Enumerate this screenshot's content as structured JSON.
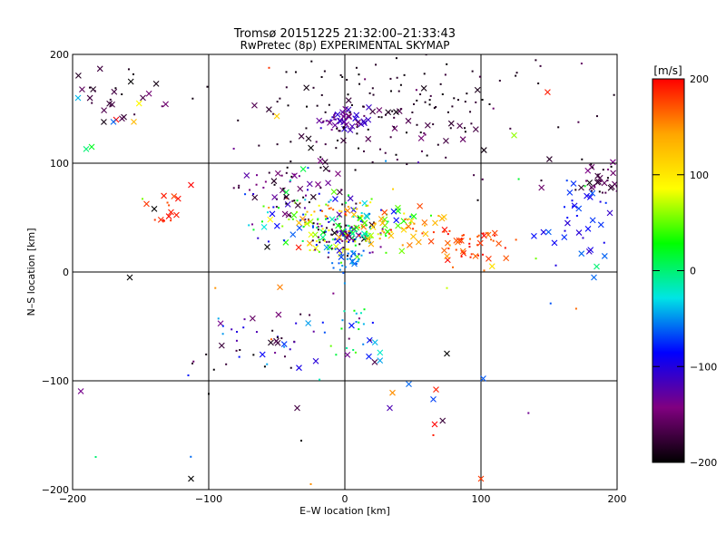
{
  "chart_data": {
    "type": "scatter",
    "title": "Tromsø 20151225 21:32:00–21:33:43",
    "subtitle": "RwPretec (8p) EXPERIMENTAL SKYMAP",
    "xlabel": "E–W location [km]",
    "ylabel": "N–S location [km]",
    "xlim": [
      -200,
      200
    ],
    "ylim": [
      -200,
      200
    ],
    "xticks": [
      -200,
      -100,
      0,
      100,
      200
    ],
    "yticks": [
      -200,
      -100,
      0,
      100,
      200
    ],
    "xtick_labels": [
      "−200",
      "−100",
      "0",
      "100",
      "200"
    ],
    "ytick_labels": [
      "−200",
      "−100",
      "0",
      "100",
      "200"
    ],
    "grid": true,
    "colorbar": {
      "label": "[m/s]",
      "range": [
        -200,
        200
      ],
      "ticks": [
        200,
        100,
        0,
        -100,
        -200
      ],
      "tick_labels": [
        "200",
        "100",
        "0",
        "−100",
        "−200"
      ],
      "colors": [
        "#ff0000",
        "#ffa500",
        "#ffff00",
        "#00ff00",
        "#00e5e5",
        "#0000ff",
        "#800080",
        "#000000"
      ]
    },
    "marker_types": [
      "dot",
      "cross"
    ],
    "clusters": [
      {
        "cx": 0,
        "cy": 35,
        "sx": 14,
        "sy": 10,
        "n": 140,
        "vmin": -200,
        "vmax": 100,
        "cross_ratio": 0.3
      },
      {
        "cx": -25,
        "cy": 50,
        "sx": 22,
        "sy": 12,
        "n": 100,
        "vmin": -200,
        "vmax": 200,
        "cross_ratio": 0.3
      },
      {
        "cx": 25,
        "cy": 45,
        "sx": 20,
        "sy": 12,
        "n": 60,
        "vmin": 0,
        "vmax": 180,
        "cross_ratio": 0.3
      },
      {
        "cx": 0,
        "cy": 140,
        "sx": 8,
        "sy": 5,
        "n": 40,
        "vmin": -140,
        "vmax": -100,
        "cross_ratio": 0.6
      },
      {
        "cx": 20,
        "cy": 130,
        "sx": 40,
        "sy": 20,
        "n": 80,
        "vmin": -200,
        "vmax": -150,
        "cross_ratio": 0.3
      },
      {
        "cx": 20,
        "cy": 160,
        "sx": 60,
        "sy": 25,
        "n": 45,
        "vmin": -200,
        "vmax": -180,
        "cross_ratio": 0.15
      },
      {
        "cx": -40,
        "cy": 80,
        "sx": 18,
        "sy": 12,
        "n": 50,
        "vmin": -200,
        "vmax": -120,
        "cross_ratio": 0.3
      },
      {
        "cx": 0,
        "cy": 10,
        "sx": 6,
        "sy": 8,
        "n": 30,
        "vmin": -70,
        "vmax": -40,
        "cross_ratio": 0.3
      },
      {
        "cx": 95,
        "cy": 25,
        "sx": 15,
        "sy": 10,
        "n": 45,
        "vmin": 160,
        "vmax": 200,
        "cross_ratio": 0.3
      },
      {
        "cx": 60,
        "cy": 35,
        "sx": 12,
        "sy": 8,
        "n": 25,
        "vmin": 120,
        "vmax": 200,
        "cross_ratio": 0.3
      },
      {
        "cx": 187,
        "cy": 85,
        "sx": 10,
        "sy": 8,
        "n": 40,
        "vmin": -200,
        "vmax": -140,
        "cross_ratio": 0.6
      },
      {
        "cx": 175,
        "cy": 45,
        "sx": 15,
        "sy": 20,
        "n": 35,
        "vmin": -110,
        "vmax": -60,
        "cross_ratio": 0.6
      },
      {
        "cx": -160,
        "cy": 160,
        "sx": 22,
        "sy": 15,
        "n": 30,
        "vmin": -200,
        "vmax": -150,
        "cross_ratio": 0.6
      },
      {
        "cx": -130,
        "cy": 58,
        "sx": 8,
        "sy": 8,
        "n": 14,
        "vmin": 170,
        "vmax": 200,
        "cross_ratio": 0.7
      },
      {
        "cx": -60,
        "cy": -65,
        "sx": 25,
        "sy": 15,
        "n": 45,
        "vmin": -200,
        "vmax": -40,
        "cross_ratio": 0.3
      },
      {
        "cx": 10,
        "cy": -55,
        "sx": 15,
        "sy": 15,
        "n": 30,
        "vmin": -200,
        "vmax": 50,
        "cross_ratio": 0.3
      },
      {
        "cx": 50,
        "cy": 160,
        "sx": 45,
        "sy": 25,
        "n": 40,
        "vmin": -200,
        "vmax": -170,
        "cross_ratio": 0.1
      },
      {
        "cx": 130,
        "cy": 130,
        "sx": 40,
        "sy": 30,
        "n": 15,
        "vmin": -200,
        "vmax": -150,
        "cross_ratio": 0.2
      },
      {
        "cx": 0,
        "cy": 0,
        "sx": 120,
        "sy": 110,
        "n": 50,
        "vmin": -200,
        "vmax": 200,
        "cross_ratio": 0.3
      }
    ],
    "points": [
      {
        "x": -168,
        "y": 140,
        "v": 200,
        "m": "cross"
      },
      {
        "x": -183,
        "y": -170,
        "v": 0,
        "m": "dot"
      },
      {
        "x": -113,
        "y": -190,
        "v": -200,
        "m": "cross"
      },
      {
        "x": -158,
        "y": -5,
        "v": -200,
        "m": "cross"
      },
      {
        "x": -57,
        "y": 23,
        "v": -200,
        "m": "cross"
      },
      {
        "x": -115,
        "y": -95,
        "v": -80,
        "m": "dot"
      },
      {
        "x": -35,
        "y": -125,
        "v": -170,
        "m": "cross"
      },
      {
        "x": -32,
        "y": -155,
        "v": -200,
        "m": "dot"
      },
      {
        "x": -25,
        "y": -195,
        "v": 150,
        "m": "dot"
      },
      {
        "x": 100,
        "y": -190,
        "v": 180,
        "m": "cross"
      },
      {
        "x": 65,
        "y": -150,
        "v": 190,
        "m": "dot"
      },
      {
        "x": 66,
        "y": -140,
        "v": 200,
        "m": "cross"
      },
      {
        "x": 67,
        "y": -108,
        "v": 190,
        "m": "cross"
      },
      {
        "x": 65,
        "y": -117,
        "v": -70,
        "m": "cross"
      },
      {
        "x": 75,
        "y": -75,
        "v": -200,
        "m": "cross"
      },
      {
        "x": 35,
        "y": -111,
        "v": 150,
        "m": "cross"
      },
      {
        "x": 33,
        "y": -125,
        "v": -120,
        "m": "cross"
      },
      {
        "x": 47,
        "y": -103,
        "v": -60,
        "m": "cross"
      },
      {
        "x": -100,
        "y": -112,
        "v": -200,
        "m": "dot"
      },
      {
        "x": 183,
        "y": -5,
        "v": -60,
        "m": "cross"
      },
      {
        "x": 185,
        "y": 5,
        "v": 0,
        "m": "cross"
      },
      {
        "x": -196,
        "y": 160,
        "v": -40,
        "m": "cross"
      },
      {
        "x": -190,
        "y": 113,
        "v": 0,
        "m": "cross"
      },
      {
        "x": -186,
        "y": 115,
        "v": 20,
        "m": "cross"
      },
      {
        "x": -170,
        "y": 138,
        "v": -60,
        "m": "cross"
      },
      {
        "x": -155,
        "y": 138,
        "v": 130,
        "m": "cross"
      },
      {
        "x": -140,
        "y": 58,
        "v": -200,
        "m": "cross"
      },
      {
        "x": -113,
        "y": 80,
        "v": 200,
        "m": "cross"
      }
    ]
  }
}
